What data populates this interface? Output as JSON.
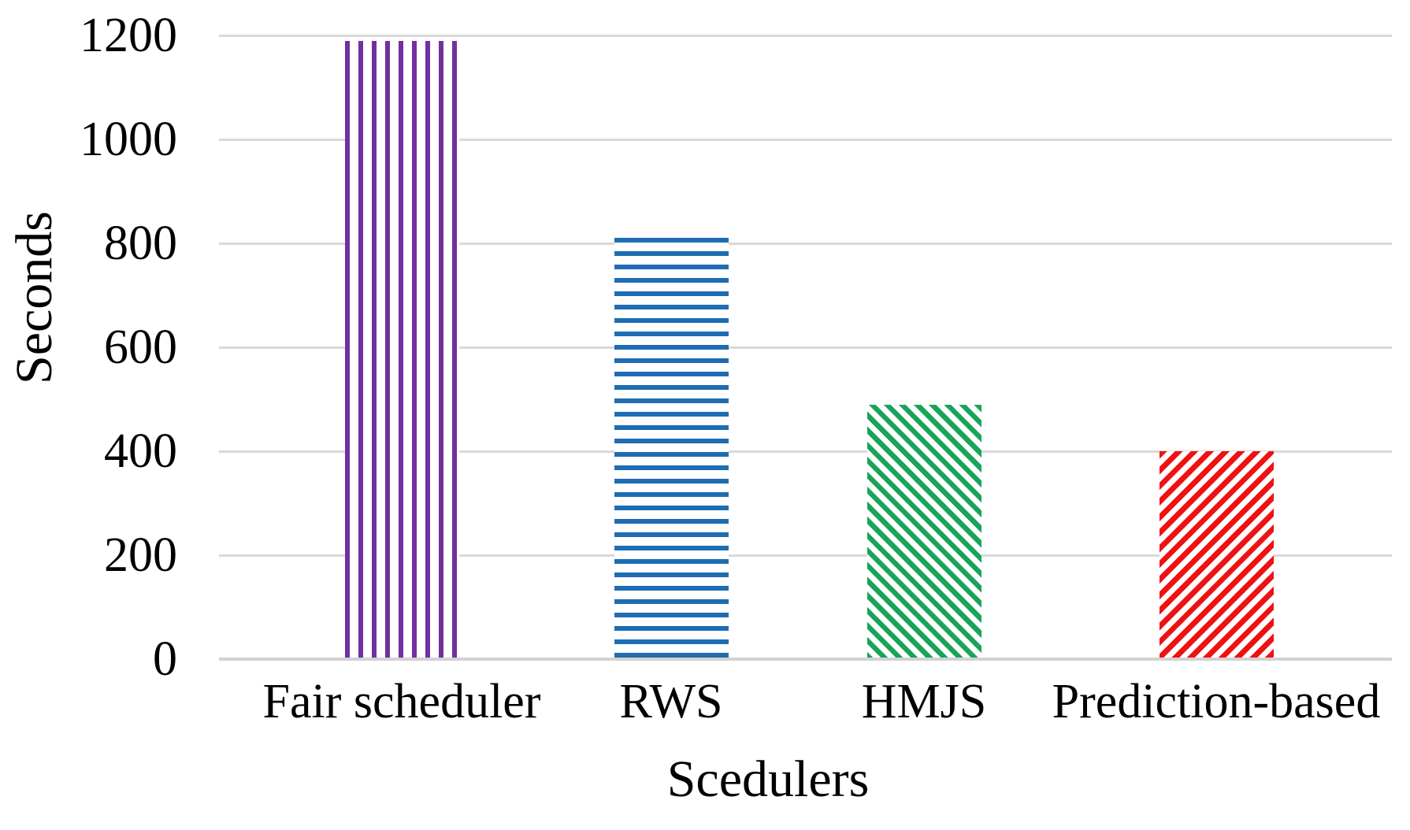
{
  "chart_data": {
    "type": "bar",
    "title": "",
    "xlabel": "Scedulers",
    "ylabel": "Seconds",
    "categories": [
      "Fair scheduler",
      "RWS",
      "HMJS",
      "Prediction-based"
    ],
    "values": [
      1190,
      810,
      490,
      400
    ],
    "ylim": [
      0,
      1200
    ],
    "ytick_interval": 200,
    "yticks": [
      0,
      200,
      400,
      600,
      800,
      1000,
      1200
    ],
    "grid": true,
    "legend": "none",
    "bars": [
      {
        "category": "Fair scheduler",
        "value": 1190,
        "color": "#70309f",
        "pattern": "vertical-stripes"
      },
      {
        "category": "RWS",
        "value": 810,
        "color": "#1e6db2",
        "pattern": "horizontal-stripes"
      },
      {
        "category": "HMJS",
        "value": 490,
        "color": "#19a45a",
        "pattern": "diagonal-down-stripes"
      },
      {
        "category": "Prediction-based",
        "value": 400,
        "color": "#ee1212",
        "pattern": "diagonal-up-stripes"
      }
    ],
    "colors": {
      "gridline": "#d9d9d9",
      "axis_text": "#000000",
      "background": "#ffffff"
    }
  }
}
